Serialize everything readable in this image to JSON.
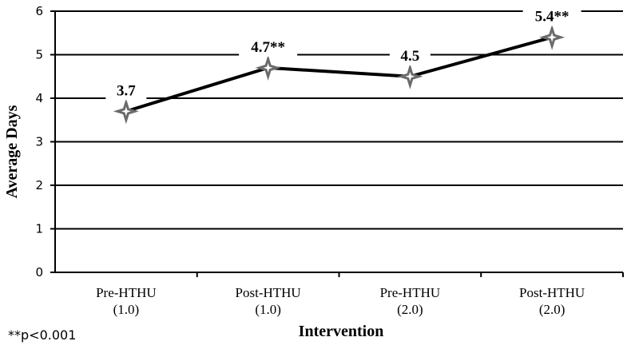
{
  "chart_data": {
    "type": "line",
    "title": "",
    "xlabel": "Intervention",
    "ylabel": "Average Days",
    "ylim": [
      0,
      6
    ],
    "yticks": [
      "0",
      "1",
      "2",
      "3",
      "4",
      "5",
      "6"
    ],
    "grid": true,
    "categories": [
      [
        "Pre-HTHU",
        "(1.0)"
      ],
      [
        "Post-HTHU",
        "(1.0)"
      ],
      [
        "Pre-HTHU",
        "(2.0)"
      ],
      [
        "Post-HTHU",
        "(2.0)"
      ]
    ],
    "series": [
      {
        "values": [
          3.7,
          4.7,
          4.5,
          5.4
        ],
        "color": "#000000",
        "marker": "four-point-star",
        "marker_color": "#6b6b6b"
      }
    ],
    "data_labels": [
      "3.7",
      "4.7**",
      "4.5",
      "5.4**"
    ],
    "footnote": "**p<0.001"
  }
}
